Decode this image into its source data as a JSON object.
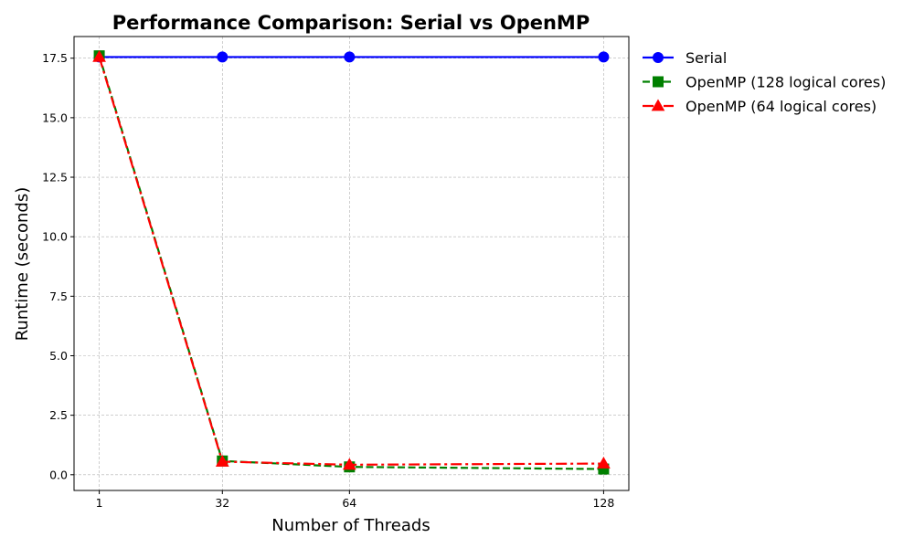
{
  "chart_data": {
    "type": "line",
    "title": "Performance Comparison: Serial vs OpenMP",
    "xlabel": "Number of Threads",
    "ylabel": "Runtime (seconds)",
    "x": [
      1,
      32,
      64,
      128
    ],
    "x_ticks": [
      1,
      32,
      64,
      128
    ],
    "y_ticks": [
      0.0,
      2.5,
      5.0,
      7.5,
      10.0,
      12.5,
      15.0,
      17.5
    ],
    "y_tick_labels": [
      "0.0",
      "2.5",
      "5.0",
      "7.5",
      "10.0",
      "12.5",
      "15.0",
      "17.5"
    ],
    "xlim": [
      -5.35,
      134.35
    ],
    "ylim": [
      -0.66,
      18.41
    ],
    "grid": true,
    "legend_position": "outside-top-right",
    "series": [
      {
        "name": "Serial",
        "values": [
          17.55,
          17.55,
          17.55,
          17.55
        ],
        "color": "#0000ff",
        "line_style": "solid",
        "marker": "circle"
      },
      {
        "name": "OpenMP (128 logical cores)",
        "values": [
          17.6,
          0.58,
          0.33,
          0.24
        ],
        "color": "#008000",
        "line_style": "dashed",
        "marker": "square"
      },
      {
        "name": "OpenMP (64 logical cores)",
        "values": [
          17.55,
          0.55,
          0.42,
          0.47
        ],
        "color": "#ff0000",
        "line_style": "dashdot",
        "marker": "triangle"
      }
    ]
  }
}
